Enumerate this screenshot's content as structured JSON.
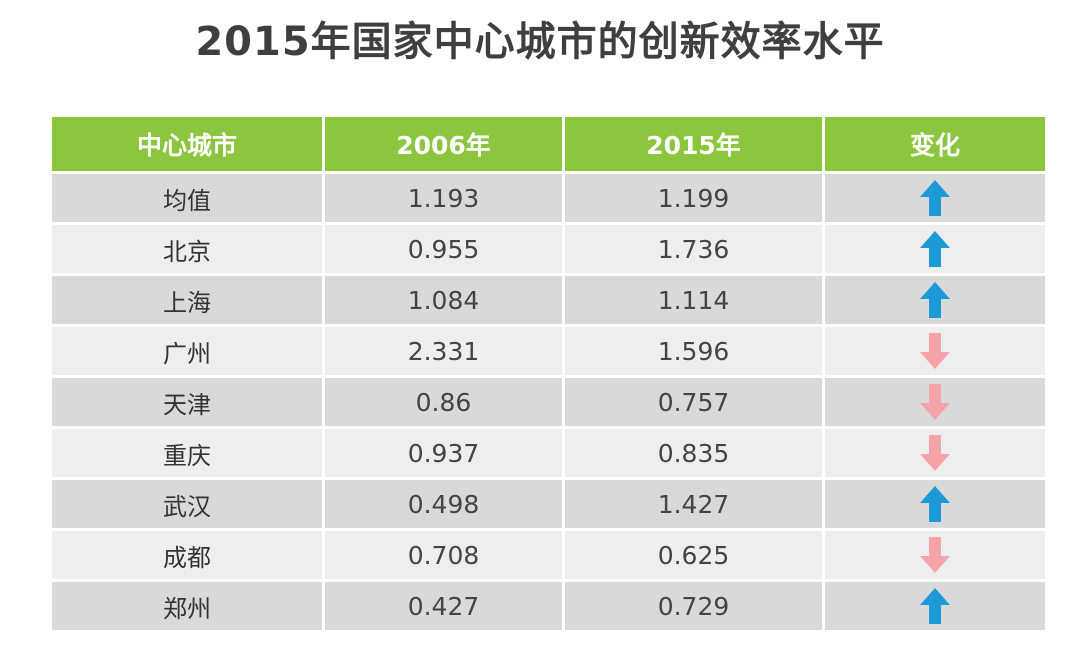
{
  "title": "2015年国家中心城市的创新效率水平",
  "colors": {
    "header_bg": "#8cc63f",
    "up_arrow": "#1b9ad6",
    "down_arrow": "#f4a3a8",
    "row_dark": "#d9d9d9",
    "row_light": "#eeeeee"
  },
  "chart_data": {
    "type": "table",
    "title": "2015年国家中心城市的创新效率水平",
    "columns": [
      "中心城市",
      "2006年",
      "2015年",
      "变化"
    ],
    "rows": [
      {
        "city": "均值",
        "y2006": "1.193",
        "y2015": "1.199",
        "change": "up"
      },
      {
        "city": "北京",
        "y2006": "0.955",
        "y2015": "1.736",
        "change": "up"
      },
      {
        "city": "上海",
        "y2006": "1.084",
        "y2015": "1.114",
        "change": "up"
      },
      {
        "city": "广州",
        "y2006": "2.331",
        "y2015": "1.596",
        "change": "down"
      },
      {
        "city": "天津",
        "y2006": "0.86",
        "y2015": "0.757",
        "change": "down"
      },
      {
        "city": "重庆",
        "y2006": "0.937",
        "y2015": "0.835",
        "change": "down"
      },
      {
        "city": "武汉",
        "y2006": "0.498",
        "y2015": "1.427",
        "change": "up"
      },
      {
        "city": "成都",
        "y2006": "0.708",
        "y2015": "0.625",
        "change": "down"
      },
      {
        "city": "郑州",
        "y2006": "0.427",
        "y2015": "0.729",
        "change": "up"
      }
    ]
  }
}
